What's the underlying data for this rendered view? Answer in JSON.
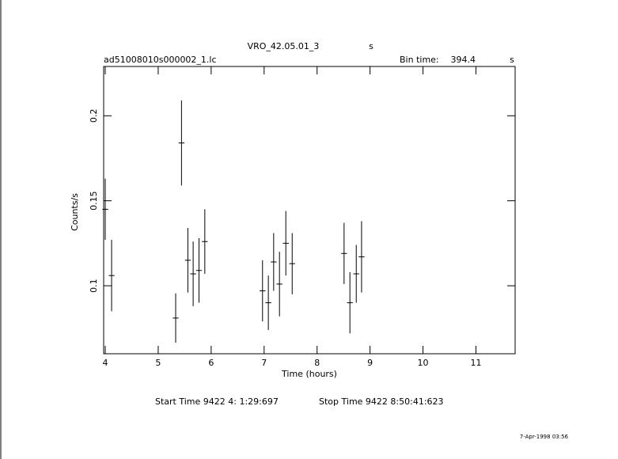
{
  "chart_data": {
    "type": "errorbar",
    "title": "VRO_42.05.01_3",
    "title_unit": "s",
    "file_name": "ad51008010s000002_1.lc",
    "bin_time_label": "Bin time:",
    "bin_time": "394.4",
    "bin_time_unit": "s",
    "xlabel": "Time (hours)",
    "ylabel": "Counts/s",
    "start_time": "Start Time  9422  4: 1:29:697",
    "stop_time": "Stop Time  9422  8:50:41:623",
    "date": "7-Apr-1998 03:56",
    "xlim": [
      3.97,
      11.74
    ],
    "ylim": [
      0.06,
      0.229
    ],
    "xticks": [
      4,
      5,
      6,
      7,
      8,
      9,
      10,
      11
    ],
    "yticks": [
      0.1,
      0.15,
      0.2
    ],
    "color": "#000000",
    "series": [
      {
        "x": [
          4.0,
          4.12,
          5.33,
          5.44,
          5.56,
          5.66,
          5.77,
          5.88,
          6.97,
          7.08,
          7.18,
          7.29,
          7.41,
          7.53,
          8.51,
          8.62,
          8.74,
          8.84
        ],
        "values": [
          0.145,
          0.106,
          0.081,
          0.184,
          0.115,
          0.107,
          0.109,
          0.126,
          0.097,
          0.09,
          0.114,
          0.101,
          0.125,
          0.113,
          0.119,
          0.09,
          0.107,
          0.117
        ],
        "errors": [
          0.018,
          0.021,
          0.0145,
          0.025,
          0.019,
          0.019,
          0.019,
          0.019,
          0.018,
          0.016,
          0.017,
          0.019,
          0.019,
          0.018,
          0.018,
          0.018,
          0.017,
          0.021
        ],
        "xerr": 0.055
      }
    ]
  }
}
